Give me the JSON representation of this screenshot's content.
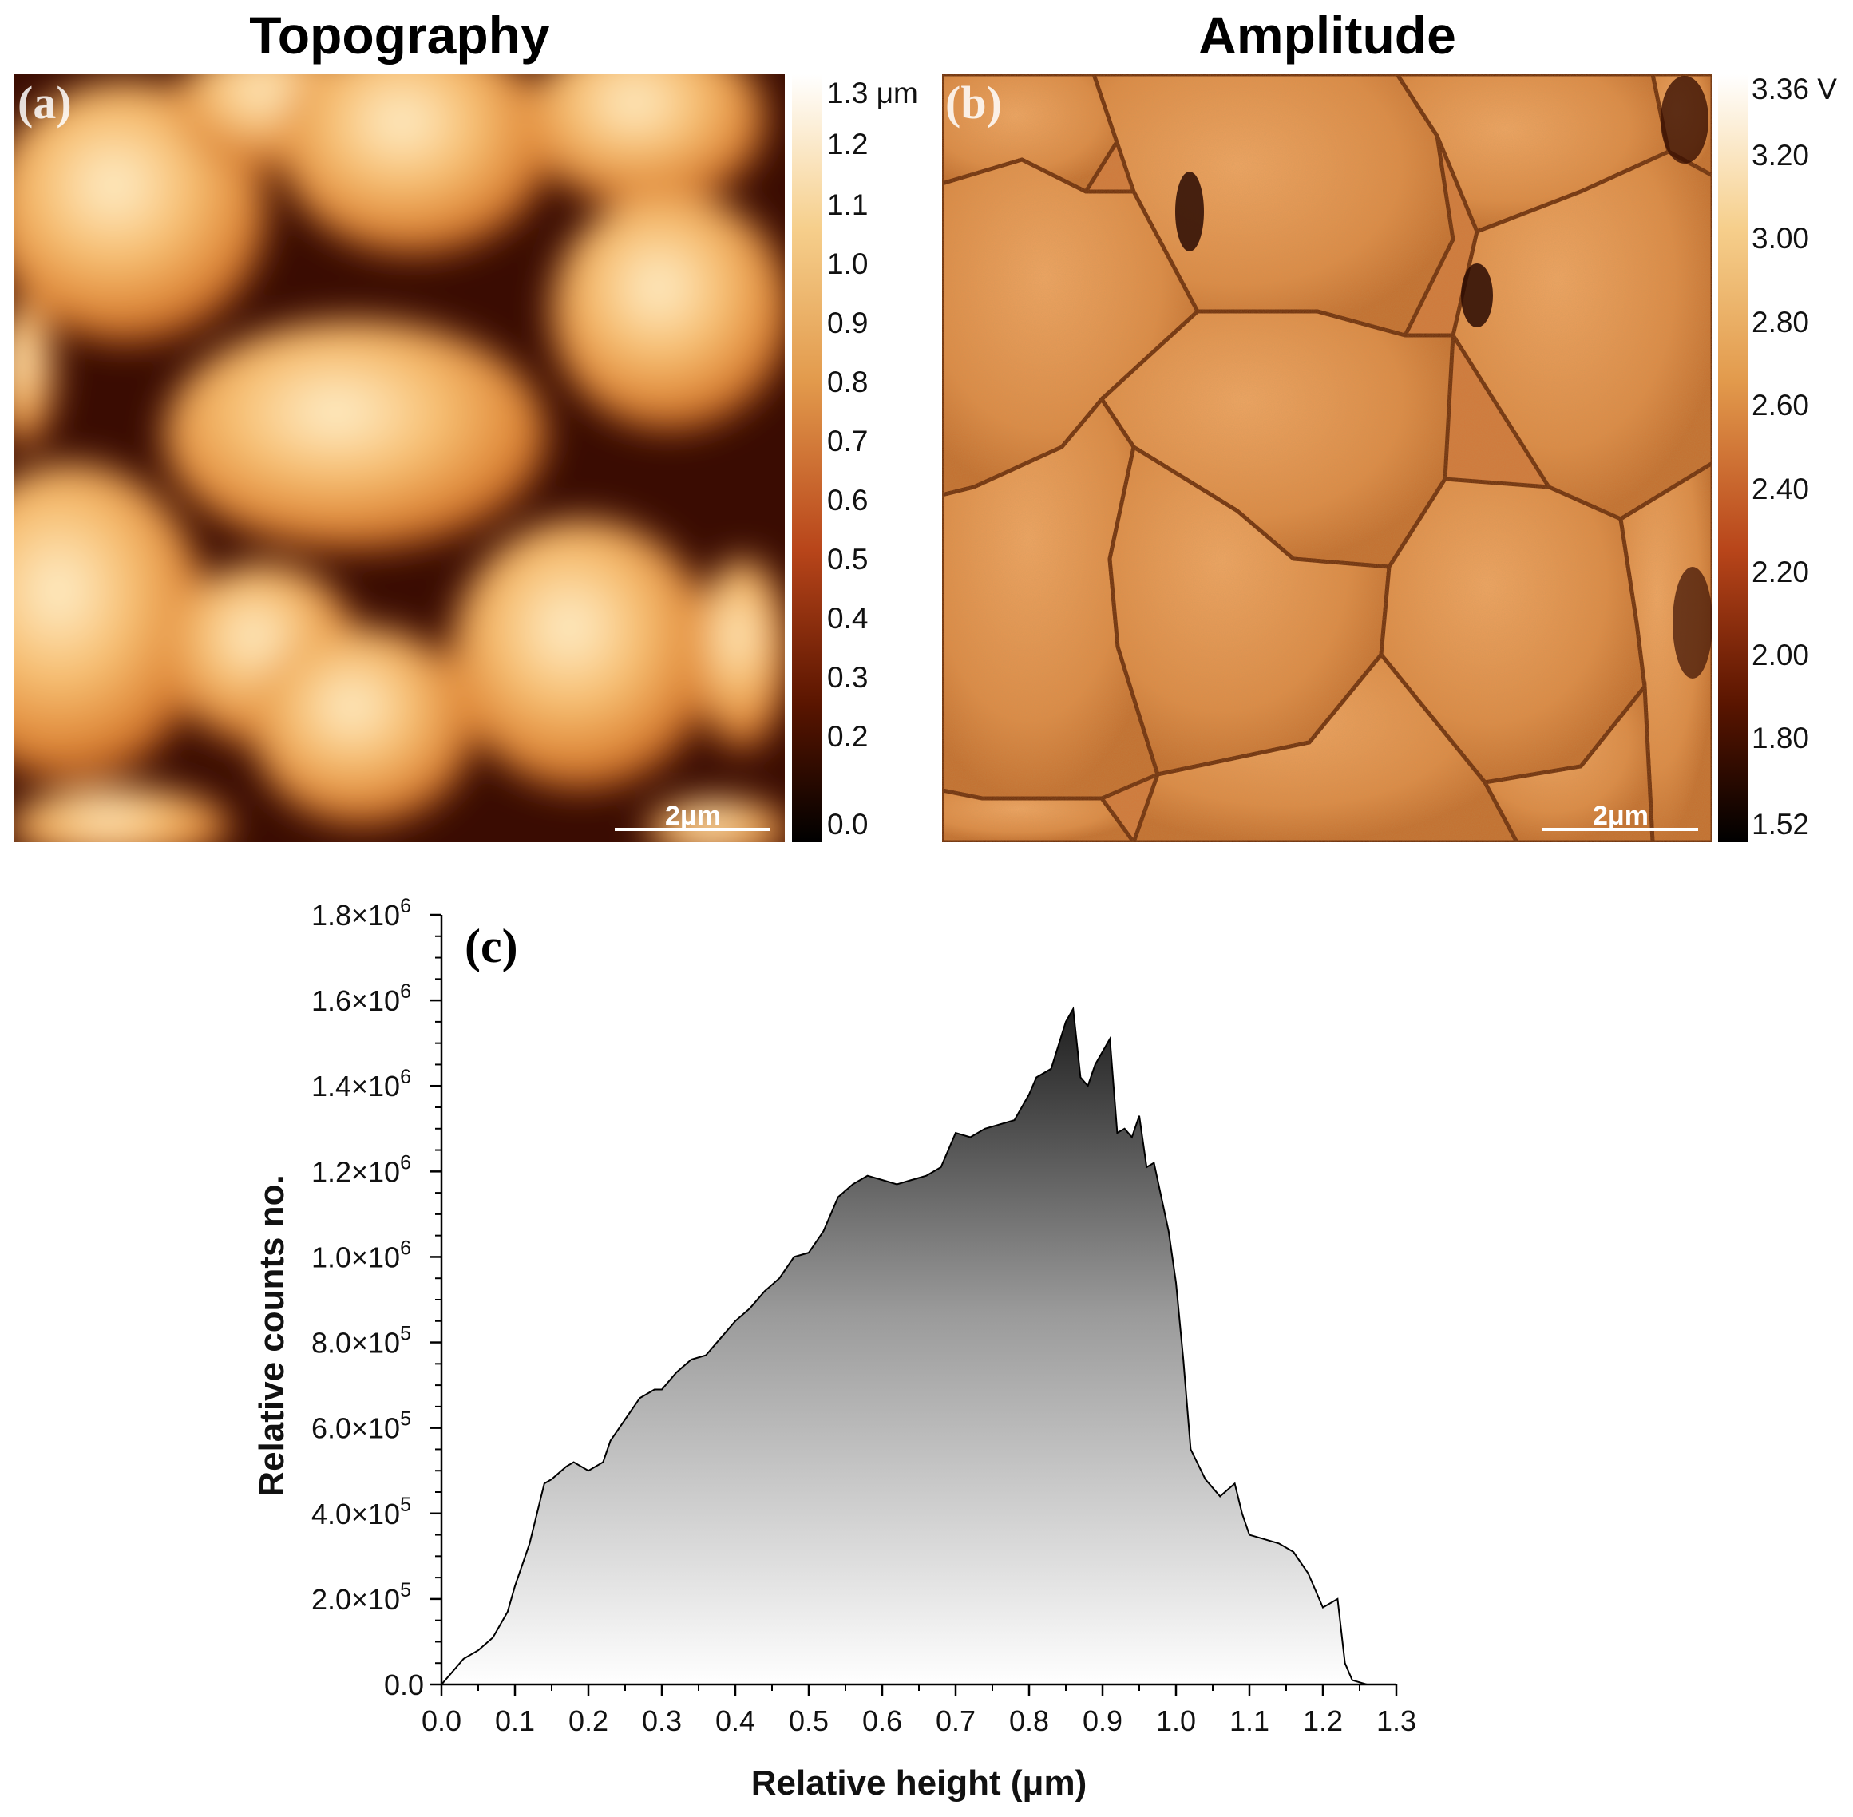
{
  "panels": {
    "a": {
      "title": "Topography",
      "tag": "(a)",
      "scalebar_label": "2μm",
      "colorbar": {
        "unit_label": "1.3 μm",
        "labels": [
          "1.2",
          "1.1",
          "1.0",
          "0.9",
          "0.8",
          "0.7",
          "0.6",
          "0.5",
          "0.4",
          "0.3",
          "0.2",
          "0.0"
        ]
      }
    },
    "b": {
      "title": "Amplitude",
      "tag": "(b)",
      "scalebar_label": "2μm",
      "colorbar": {
        "unit_label": "3.36 V",
        "labels": [
          "3.20",
          "3.00",
          "2.80",
          "2.60",
          "2.40",
          "2.20",
          "2.00",
          "1.80",
          "1.52"
        ]
      }
    }
  },
  "colors": {
    "afm_dark": "#1a0500",
    "afm_mid": "#c0501a",
    "afm_light": "#fff5e0",
    "histogram_dark": "#1e1e1e",
    "histogram_light": "#ffffff"
  },
  "chart_data": {
    "type": "area",
    "tag": "(c)",
    "xlabel": "Relative height (μm)",
    "ylabel": "Relative counts no.",
    "xlim": [
      0.0,
      1.3
    ],
    "ylim": [
      0,
      1800000
    ],
    "xticks": [
      "0.0",
      "0.1",
      "0.2",
      "0.3",
      "0.4",
      "0.5",
      "0.6",
      "0.7",
      "0.8",
      "0.9",
      "1.0",
      "1.1",
      "1.2",
      "1.3"
    ],
    "yticks": [
      {
        "mantissa": "0.0",
        "exp": ""
      },
      {
        "mantissa": "2.0×10",
        "exp": "5"
      },
      {
        "mantissa": "4.0×10",
        "exp": "5"
      },
      {
        "mantissa": "6.0×10",
        "exp": "5"
      },
      {
        "mantissa": "8.0×10",
        "exp": "5"
      },
      {
        "mantissa": "1.0×10",
        "exp": "6"
      },
      {
        "mantissa": "1.2×10",
        "exp": "6"
      },
      {
        "mantissa": "1.4×10",
        "exp": "6"
      },
      {
        "mantissa": "1.6×10",
        "exp": "6"
      },
      {
        "mantissa": "1.8×10",
        "exp": "6"
      }
    ],
    "x": [
      0.0,
      0.01,
      0.02,
      0.03,
      0.05,
      0.07,
      0.09,
      0.1,
      0.12,
      0.14,
      0.15,
      0.17,
      0.18,
      0.2,
      0.22,
      0.23,
      0.25,
      0.27,
      0.29,
      0.3,
      0.32,
      0.34,
      0.36,
      0.38,
      0.4,
      0.42,
      0.44,
      0.46,
      0.48,
      0.5,
      0.52,
      0.54,
      0.56,
      0.58,
      0.6,
      0.62,
      0.64,
      0.66,
      0.68,
      0.7,
      0.72,
      0.74,
      0.76,
      0.78,
      0.8,
      0.81,
      0.83,
      0.85,
      0.86,
      0.87,
      0.88,
      0.89,
      0.9,
      0.91,
      0.92,
      0.93,
      0.94,
      0.95,
      0.96,
      0.97,
      0.98,
      0.99,
      1.0,
      1.01,
      1.02,
      1.04,
      1.06,
      1.08,
      1.09,
      1.1,
      1.12,
      1.14,
      1.16,
      1.18,
      1.2,
      1.22,
      1.23,
      1.24,
      1.25,
      1.26
    ],
    "y": [
      0,
      20000,
      40000,
      60000,
      80000,
      110000,
      170000,
      230000,
      330000,
      470000,
      480000,
      510000,
      520000,
      500000,
      520000,
      570000,
      620000,
      670000,
      690000,
      690000,
      730000,
      760000,
      770000,
      810000,
      850000,
      880000,
      920000,
      950000,
      1000000,
      1010000,
      1060000,
      1140000,
      1170000,
      1190000,
      1180000,
      1170000,
      1180000,
      1190000,
      1210000,
      1290000,
      1280000,
      1300000,
      1310000,
      1320000,
      1380000,
      1420000,
      1440000,
      1550000,
      1580000,
      1420000,
      1400000,
      1450000,
      1480000,
      1510000,
      1290000,
      1300000,
      1280000,
      1330000,
      1210000,
      1220000,
      1140000,
      1060000,
      940000,
      760000,
      550000,
      480000,
      440000,
      470000,
      400000,
      350000,
      340000,
      330000,
      310000,
      260000,
      180000,
      200000,
      50000,
      10000,
      5000,
      0
    ],
    "grid": false,
    "fill": "vertical gradient, dark at top to white at bottom"
  }
}
